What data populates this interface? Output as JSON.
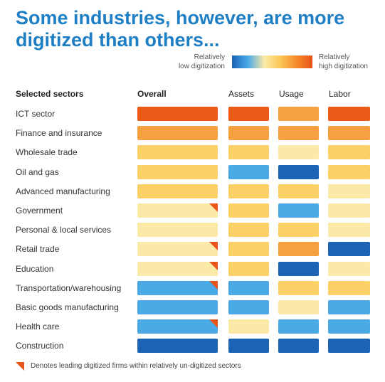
{
  "title": "Some industries, however, are more digitized than others...",
  "legend": {
    "low_label_line1": "Relatively",
    "low_label_line2": "low digitization",
    "high_label_line1": "Relatively",
    "high_label_line2": "high digitization",
    "gradient_colors": [
      "#1a63b5",
      "#4aaae6",
      "#fbe9a8",
      "#fbc857",
      "#f58a2a",
      "#e8541a"
    ]
  },
  "footnote": "Denotes leading digitized firms within relatively un-digitized sectors",
  "chart_data": {
    "type": "heatmap",
    "row_header": "Selected sectors",
    "columns": [
      "Overall",
      "Assets",
      "Usage",
      "Labor"
    ],
    "scale": "digitization level, 0 = relatively low, 5 = relatively high",
    "colors": {
      "0": "#1a63b5",
      "1": "#4aaae6",
      "2": "#fbe9a8",
      "3": "#fbd066",
      "4": "#f7a040",
      "5": "#ec5a17"
    },
    "rows": [
      {
        "sector": "ICT sector",
        "values": [
          5,
          5,
          4,
          5
        ],
        "leading_firms": false
      },
      {
        "sector": "Finance and insurance",
        "values": [
          4,
          4,
          4,
          4
        ],
        "leading_firms": false
      },
      {
        "sector": "Wholesale trade",
        "values": [
          3,
          3,
          2,
          3
        ],
        "leading_firms": false
      },
      {
        "sector": "Oil and gas",
        "values": [
          3,
          1,
          0,
          3
        ],
        "leading_firms": false
      },
      {
        "sector": "Advanced manufacturing",
        "values": [
          3,
          3,
          3,
          2
        ],
        "leading_firms": false
      },
      {
        "sector": "Government",
        "values": [
          2,
          3,
          1,
          2
        ],
        "leading_firms": true
      },
      {
        "sector": "Personal & local services",
        "values": [
          2,
          3,
          3,
          2
        ],
        "leading_firms": false
      },
      {
        "sector": "Retail trade",
        "values": [
          2,
          3,
          4,
          0
        ],
        "leading_firms": true
      },
      {
        "sector": "Education",
        "values": [
          2,
          3,
          0,
          2
        ],
        "leading_firms": true
      },
      {
        "sector": "Transportation/warehousing",
        "values": [
          1,
          1,
          3,
          3
        ],
        "leading_firms": true
      },
      {
        "sector": "Basic goods manufacturing",
        "values": [
          1,
          1,
          2,
          1
        ],
        "leading_firms": false
      },
      {
        "sector": "Health care",
        "values": [
          1,
          2,
          1,
          1
        ],
        "leading_firms": true
      },
      {
        "sector": "Construction",
        "values": [
          0,
          0,
          0,
          0
        ],
        "leading_firms": false
      }
    ]
  }
}
